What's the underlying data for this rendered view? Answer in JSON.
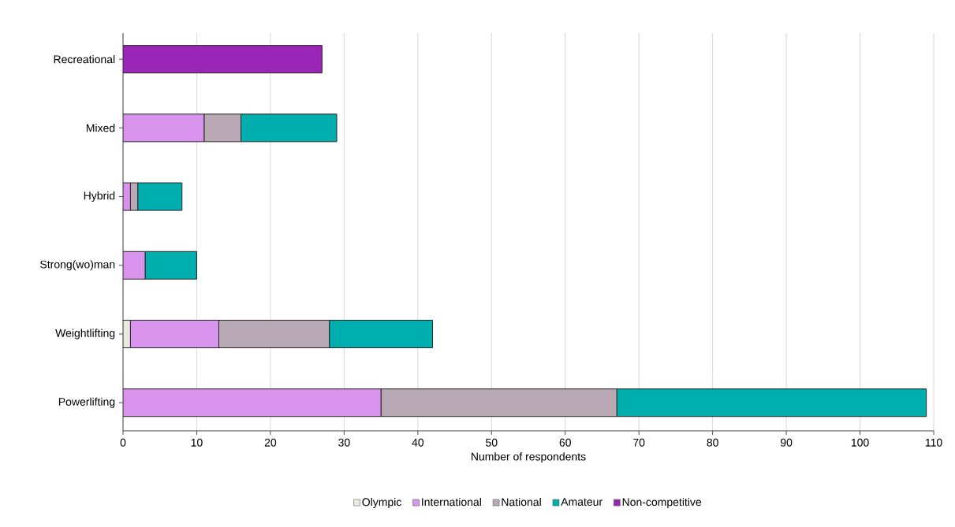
{
  "chart_data": {
    "type": "bar",
    "orientation": "horizontal",
    "stacked": true,
    "categories": [
      "Recreational",
      "Mixed",
      "Hybrid",
      "Strong(wo)man",
      "Weightlifting",
      "Powerlifting"
    ],
    "series": [
      {
        "name": "Olympic",
        "color": "#ece8e2",
        "values": [
          0,
          0,
          0,
          0,
          1,
          0
        ]
      },
      {
        "name": "International",
        "color": "#d894ec",
        "values": [
          0,
          11,
          1,
          3,
          12,
          35
        ]
      },
      {
        "name": "National",
        "color": "#b9a9b4",
        "values": [
          0,
          5,
          1,
          0,
          15,
          32
        ]
      },
      {
        "name": "Amateur",
        "color": "#00aeae",
        "values": [
          0,
          13,
          6,
          7,
          14,
          42
        ]
      },
      {
        "name": "Non-competitive",
        "color": "#9a26b8",
        "values": [
          27,
          0,
          0,
          0,
          0,
          0
        ]
      }
    ],
    "xlabel": "Number of respondents",
    "xlim": [
      0,
      110
    ],
    "xticks": [
      0,
      10,
      20,
      30,
      40,
      50,
      60,
      70,
      80,
      90,
      100,
      110
    ],
    "grid": "x",
    "legend": "bottom"
  }
}
